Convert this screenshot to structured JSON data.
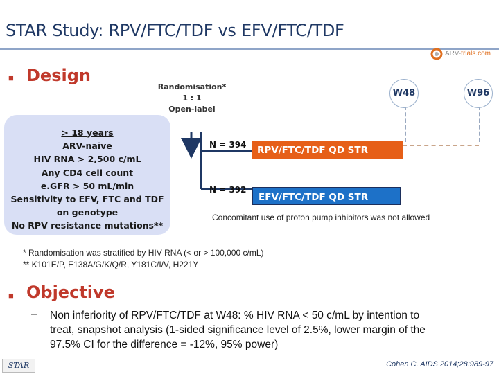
{
  "title": "STAR Study: RPV/FTC/TDF vs EFV/FTC/TDF",
  "logo": {
    "prefix": "ARV-",
    "suffix": "trials.com"
  },
  "design": {
    "heading": "Design",
    "criteria": [
      "> 18 years",
      "ARV-naïve",
      "HIV RNA > 2,500 c/mL",
      "Any CD4 cell count",
      "e.GFR > 50 mL/min",
      "Sensitivity to EFV, FTC and TDF",
      "on genotype",
      "No RPV resistance mutations**"
    ],
    "randomisation": [
      "Randomisation*",
      "1 : 1",
      "Open-label"
    ],
    "timepoints": [
      "W48",
      "W96"
    ],
    "arms": [
      {
        "n": "N = 394",
        "label": "RPV/FTC/TDF QD STR",
        "color": "#e65f18"
      },
      {
        "n": "N = 392",
        "label": "EFV/FTC/TDF QD STR",
        "color": "#1d71c8"
      }
    ],
    "concomitant_note": "Concomitant use of proton pump inhibitors was not allowed",
    "footnotes": [
      "* Randomisation was stratified by HIV RNA (< or > 100,000 c/mL)",
      "** K101E/P, E138A/G/K/Q/R, Y181C/I/V, H221Y"
    ]
  },
  "objective": {
    "heading": "Objective",
    "dash": "–",
    "text_lines": [
      "Non inferiority of RPV/FTC/TDF at W48: % HIV RNA < 50 c/mL by intention to",
      "treat, snapshot analysis (1-sided significance level of 2.5%, lower margin of the",
      "97.5% CI for the difference = -12%, 95% power)"
    ]
  },
  "footer": {
    "study_tag": "STAR",
    "citation": "Cohen C. AIDS 2014;28:989-97"
  }
}
